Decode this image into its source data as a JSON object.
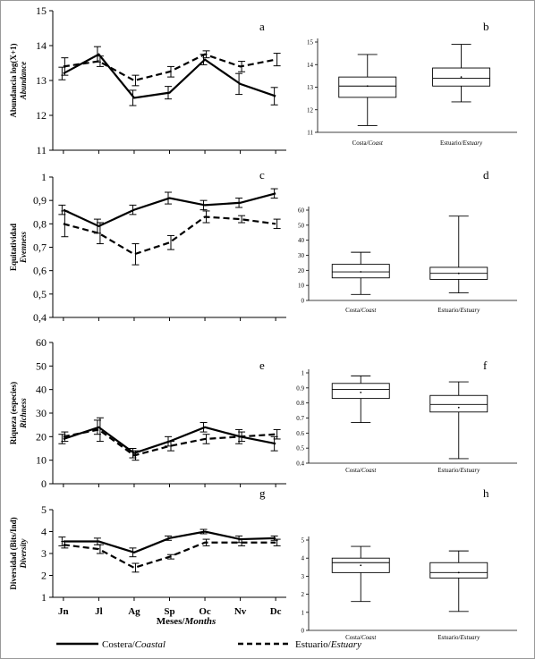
{
  "months": [
    "Jn",
    "Jl",
    "Ag",
    "Sp",
    "Oc",
    "Nv",
    "Dc"
  ],
  "xaxis_label": {
    "es": "Meses/",
    "en": "Months"
  },
  "legend": {
    "coastal": {
      "es": "Costera/",
      "en": "Coastal"
    },
    "estuary": {
      "es": "Estuario/",
      "en": "Estuary"
    }
  },
  "chart_data": [
    {
      "panel": "a",
      "type": "line",
      "ylabel": "Abundancia log(X+1)",
      "ylabel_en": "Abundance",
      "ylim": [
        11,
        15
      ],
      "yticks": [
        "11",
        "12",
        "13",
        "14",
        "15"
      ],
      "categories": [
        "Jn",
        "Jl",
        "Ag",
        "Sp",
        "Oc",
        "Nv",
        "Dc"
      ],
      "series": [
        {
          "name": "Costera/Coastal",
          "style": "solid",
          "values": [
            13.2,
            13.75,
            12.5,
            12.65,
            13.6,
            12.9,
            12.55
          ],
          "errors": [
            0.18,
            0.22,
            0.22,
            0.18,
            0.15,
            0.3,
            0.25
          ]
        },
        {
          "name": "Estuario/Estuary",
          "style": "dashed",
          "values": [
            13.4,
            13.55,
            13.0,
            13.25,
            13.75,
            13.4,
            13.6
          ],
          "errors": [
            0.25,
            0.15,
            0.15,
            0.15,
            0.1,
            0.15,
            0.18
          ]
        }
      ]
    },
    {
      "panel": "b",
      "type": "box",
      "ylim": [
        11,
        15
      ],
      "yticks": [
        "11",
        "12",
        "13",
        "14",
        "15"
      ],
      "categories": [
        "Costa/Coast",
        "Estuario/Estuary"
      ],
      "boxes": [
        {
          "min": 11.3,
          "q1": 12.55,
          "median": 13.05,
          "mean": 13.05,
          "q3": 13.45,
          "max": 14.45
        },
        {
          "min": 12.35,
          "q1": 13.05,
          "median": 13.4,
          "mean": 13.45,
          "q3": 13.85,
          "max": 14.9
        }
      ]
    },
    {
      "panel": "c",
      "type": "line",
      "ylabel": "Equitatividad",
      "ylabel_en": "Evenness",
      "ylim": [
        0.4,
        1.0
      ],
      "yticks": [
        "0,4",
        "0,5",
        "0,6",
        "0,7",
        "0,8",
        "0,9",
        "1"
      ],
      "categories": [
        "Jn",
        "Jl",
        "Ag",
        "Sp",
        "Oc",
        "Nv",
        "Dc"
      ],
      "series": [
        {
          "name": "Costera/Coastal",
          "style": "solid",
          "values": [
            0.86,
            0.79,
            0.86,
            0.91,
            0.88,
            0.89,
            0.93
          ],
          "errors": [
            0.02,
            0.03,
            0.02,
            0.025,
            0.02,
            0.02,
            0.02
          ]
        },
        {
          "name": "Estuario/Estuary",
          "style": "dashed",
          "values": [
            0.8,
            0.76,
            0.67,
            0.72,
            0.83,
            0.82,
            0.8
          ],
          "errors": [
            0.055,
            0.045,
            0.045,
            0.03,
            0.025,
            0.015,
            0.02
          ]
        }
      ]
    },
    {
      "panel": "d",
      "type": "box",
      "ylim": [
        0,
        60
      ],
      "yticks": [
        "0",
        "10",
        "20",
        "30",
        "40",
        "50",
        "60"
      ],
      "categories": [
        "Costa/Coast",
        "Estuario/Estuary"
      ],
      "boxes": [
        {
          "min": 4,
          "q1": 15,
          "median": 19,
          "mean": 19,
          "q3": 24,
          "max": 32
        },
        {
          "min": 5,
          "q1": 14,
          "median": 18,
          "mean": 18,
          "q3": 22,
          "max": 56
        }
      ]
    },
    {
      "panel": "e",
      "type": "line",
      "ylabel": "Riqueza (especies)",
      "ylabel_en": "Richness",
      "ylim": [
        0,
        60
      ],
      "yticks": [
        "0",
        "10",
        "20",
        "30",
        "40",
        "50",
        "60"
      ],
      "categories": [
        "Jn",
        "Jl",
        "Ag",
        "Sp",
        "Oc",
        "Nv",
        "Dc"
      ],
      "series": [
        {
          "name": "Costera/Coastal",
          "style": "solid",
          "values": [
            19,
            24,
            13,
            18,
            24,
            20,
            17
          ],
          "errors": [
            2,
            3,
            2,
            2,
            2,
            3,
            3
          ]
        },
        {
          "name": "Estuario/Estuary",
          "style": "dashed",
          "values": [
            20,
            23,
            12,
            16,
            19,
            20,
            21
          ],
          "errors": [
            2,
            5,
            2,
            2,
            2,
            2,
            2
          ]
        }
      ]
    },
    {
      "panel": "f",
      "type": "box",
      "ylim": [
        0.4,
        1.0
      ],
      "yticks": [
        "0.4",
        "0.5",
        "0.6",
        "0.7",
        "0.8",
        "0.9",
        "1"
      ],
      "categories": [
        "Costa/Coast",
        "Estuario/Estuary"
      ],
      "boxes": [
        {
          "min": 0.67,
          "q1": 0.83,
          "median": 0.89,
          "mean": 0.87,
          "q3": 0.93,
          "max": 0.98
        },
        {
          "min": 0.43,
          "q1": 0.74,
          "median": 0.79,
          "mean": 0.77,
          "q3": 0.85,
          "max": 0.94
        }
      ]
    },
    {
      "panel": "g",
      "type": "line",
      "ylabel": "Diversidad (Bits/Ind)",
      "ylabel_en": "Diversity",
      "ylim": [
        1,
        5
      ],
      "yticks": [
        "1",
        "2",
        "3",
        "4",
        "5"
      ],
      "categories": [
        "Jn",
        "Jl",
        "Ag",
        "Sp",
        "Oc",
        "Nv",
        "Dc"
      ],
      "series": [
        {
          "name": "Costera/Coastal",
          "style": "solid",
          "values": [
            3.55,
            3.55,
            3.05,
            3.7,
            4.0,
            3.65,
            3.7
          ],
          "errors": [
            0.2,
            0.15,
            0.2,
            0.1,
            0.1,
            0.15,
            0.1
          ]
        },
        {
          "name": "Estuario/Estuary",
          "style": "dashed",
          "values": [
            3.4,
            3.2,
            2.35,
            2.85,
            3.5,
            3.5,
            3.5
          ],
          "errors": [
            0.15,
            0.2,
            0.2,
            0.1,
            0.15,
            0.15,
            0.15
          ]
        }
      ]
    },
    {
      "panel": "h",
      "type": "box",
      "ylim": [
        0,
        5
      ],
      "yticks": [
        "0",
        "1",
        "2",
        "3",
        "4",
        "5"
      ],
      "categories": [
        "Costa/Coast",
        "Estuario/Estuary"
      ],
      "boxes": [
        {
          "min": 1.6,
          "q1": 3.2,
          "median": 3.75,
          "mean": 3.6,
          "q3": 4.0,
          "max": 4.65
        },
        {
          "min": 1.05,
          "q1": 2.9,
          "median": 3.2,
          "mean": 3.2,
          "q3": 3.75,
          "max": 4.4
        }
      ]
    }
  ]
}
